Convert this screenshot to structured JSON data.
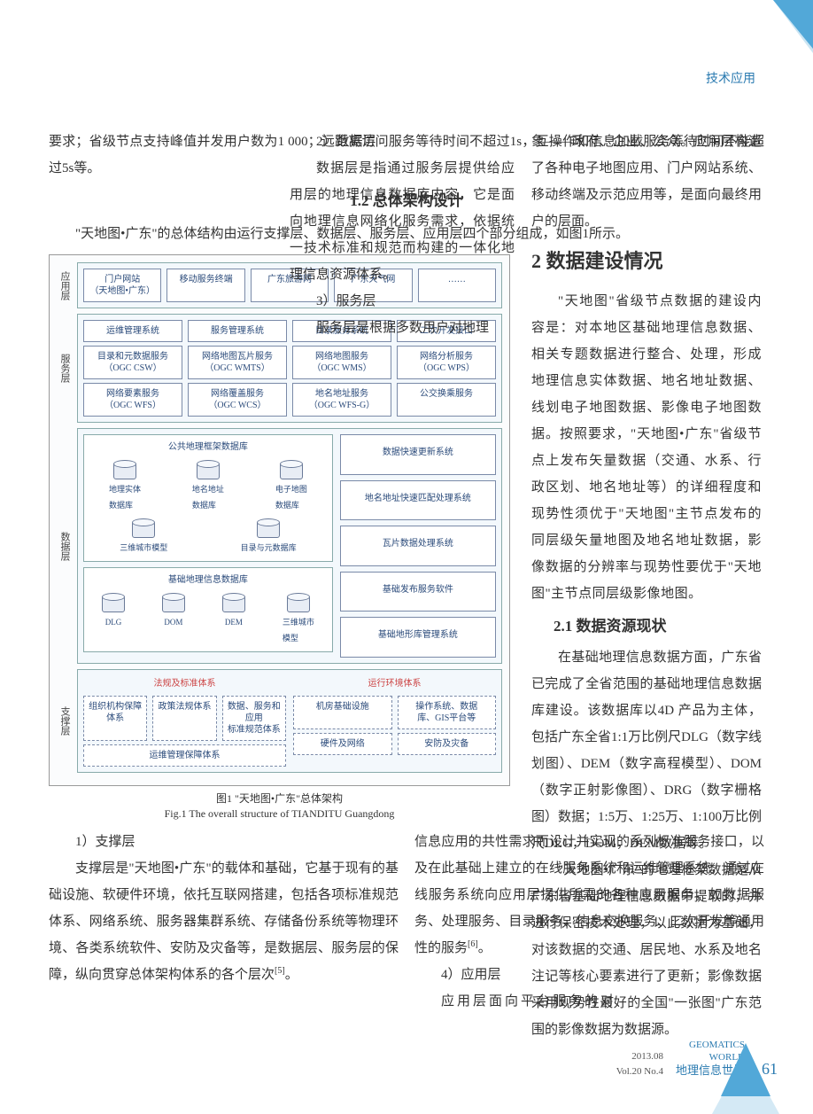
{
  "header": {
    "tag": "技术应用"
  },
  "col1": {
    "p1": "要求；省级节点支持峰值并发用户数为1 000；远距离访问服务等待时间不超过1s，互操作和信息加载服务等待时间不能超过5s等。",
    "h12": "1.2 总体架构设计",
    "p2": "\"天地图•广东\"的总体结构由运行支撑层、数据层、服务层、应用层四个部分组成，如图1所示。"
  },
  "col2": {
    "s2": "2）数据层",
    "p2": "数据层是指通过服务层提供给应用层的地理信息数据库内容，它是面向地理信息网络化服务需求，依据统一技术标准和规范而构建的一体化地理信息资源体系。",
    "s3": "3）服务层",
    "p3": "服务层是根据多数用户对地理"
  },
  "col3": {
    "p1": "象——政府、企业、公众。应用层构造了各种电子地图应用、门户网站系统、移动终端及示范应用等，是面向最终用户的层面。",
    "h2": "2 数据建设情况",
    "p2": "\"天地图\"省级节点数据的建设内容是：对本地区基础地理信息数据、相关专题数据进行整合、处理，形成地理信息实体数据、地名地址数据、线划电子地图数据、影像电子地图数据。按照要求，\"天地图•广东\"省级节点上发布矢量数据（交通、水系、行政区划、地名地址等）的详细程度和现势性须优于\"天地图\"主节点发布的同层级矢量地图及地名地址数据，影像数据的分辨率与现势性要优于\"天地图\"主节点同层级影像地图。",
    "h21": "2.1 数据资源现状",
    "p3": "在基础地理信息数据方面，广东省已完成了全省范围的基础地理信息数据库建设。该数据库以4D 产品为主体，包括广东全省1:1万比例尺DLG（数字线划图）、DEM（数字高程模型）、DOM（数字正射影像图）、DRG（数字栅格图）数据；1:5万、1:25万、1:100万比例尺DLG，DOM，DEM数据等。",
    "p4": "\"天地图•广东\"的地理框架数据是从广东省基础地理信息数据中提取的，并进行保密技术处理，以此数据为基础，对该数据的交通、居民地、水系及地名注记等核心要素进行了更新；影像数据采用现势性最好的全国\"一张图\"广东范围的影像数据为数据源。"
  },
  "figure": {
    "app_layer": {
      "label": "应用层",
      "boxes": [
        "门户网站\n（天地图•广东）",
        "移动服务终端",
        "广东旅游网",
        "广东天气网",
        "……"
      ]
    },
    "service_layer": {
      "label": "服务层",
      "row1": [
        "运维管理系统",
        "服务管理系统",
        "目录服务系统",
        "二次开发接口"
      ],
      "row2": [
        "目录和元数据服务\n（OGC CSW）",
        "网络地图瓦片服务\n（OGC WMTS）",
        "网络地图服务\n（OGC WMS）",
        "网络分析服务\n（OGC WPS）"
      ],
      "row3": [
        "网络要素服务\n（OGC WFS）",
        "网络覆盖服务\n（OGC WCS）",
        "地名地址服务\n（OGC WFS-G）",
        "公交换乘服务"
      ]
    },
    "data_layer": {
      "label": "数据层",
      "group1": {
        "title": "公共地理框架数据库",
        "items_top": [
          "地理实体\n数据库",
          "地名地址\n数据库",
          "电子地图\n数据库"
        ],
        "items_bot": [
          "三维城市模型",
          "目录与元数据库"
        ]
      },
      "group2": {
        "title": "基础地理信息数据库",
        "items": [
          "DLG",
          "DOM",
          "DEM",
          "三维城市\n模型"
        ]
      },
      "systems": [
        "数据快速更新系统",
        "地名地址快速匹配处理系统",
        "瓦片数据处理系统",
        "基础发布服务软件",
        "基础地形库管理系统"
      ]
    },
    "support_layer": {
      "label": "支撑层",
      "left_title": "法规及标准体系",
      "right_title": "运行环境体系",
      "left_boxes": [
        [
          "组织机构保障体系",
          "政策法规体系",
          "数据、服务和应用\n标准规范体系"
        ],
        [
          "运维管理保障体系"
        ]
      ],
      "right_boxes": [
        [
          "机房基础设施",
          "操作系统、数据\n库、GIS平台等"
        ],
        [
          "硬件及网络",
          "安防及灾备"
        ]
      ]
    },
    "caption_cn": "图1 \"天地图•广东\"总体架构",
    "caption_en": "Fig.1 The overall structure of TIANDITU Guangdong"
  },
  "bottom": {
    "left": {
      "s1": "1）支撑层",
      "p1": "支撑层是\"天地图•广东\"的载体和基础，它基于现有的基础设施、软硬件环境，依托互联网搭建，包括各项标准规范体系、网络系统、服务器集群系统、存储备份系统等物理环境、各类系统软件、安防及灾备等，是数据层、服务层的保障，纵向贯穿总体架构体系的各个层次",
      "ref1": "[5]",
      "p1_end": "。"
    },
    "right": {
      "p1": "信息应用的共性需求而设计并实现的系列标准服务接口，以及在此基础上建立的在线服务系统和运维管理系统，通过在线服务系统向应用层提供所需的各种应用服务，如数据服务、处理服务、目录服务、信息交换服务、二次开发等通用性的服务",
      "ref1": "[6]",
      "p1_end": "。",
      "s4": "4）应用层",
      "p2": "应用层面向平台服务的对"
    }
  },
  "footer": {
    "date": "2013.08",
    "vol": "Vol.20 No.4",
    "journal_en1": "GEOMATICS",
    "journal_en2": "WORLD",
    "journal_cn": "地理信息世界",
    "page": "61"
  }
}
